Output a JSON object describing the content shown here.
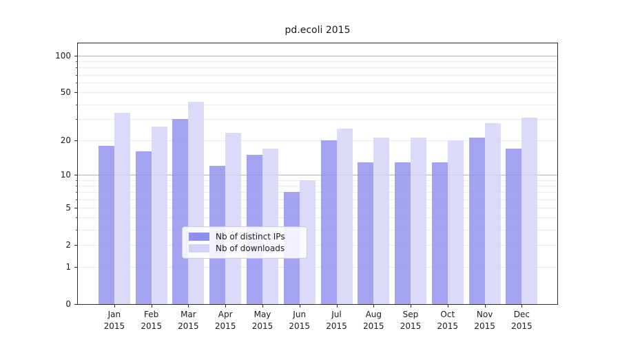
{
  "title": "pd.ecoli 2015",
  "chart_data": {
    "type": "bar",
    "title": "pd.ecoli 2015",
    "categories": [
      "Jan",
      "Feb",
      "Mar",
      "Apr",
      "May",
      "Jun",
      "Jul",
      "Aug",
      "Sep",
      "Oct",
      "Nov",
      "Dec"
    ],
    "category_year": "2015",
    "series": [
      {
        "name": "Nb of distinct IPs",
        "color": "#8f8fee",
        "values": [
          18,
          16,
          30,
          12,
          15,
          7,
          20,
          13,
          13,
          13,
          21,
          17
        ]
      },
      {
        "name": "Nb of downloads",
        "color": "#d3d3f8",
        "values": [
          34,
          26,
          42,
          23,
          17,
          9,
          25,
          21,
          21,
          20,
          28,
          31
        ]
      }
    ],
    "xlabel": "",
    "ylabel": "",
    "yscale": "log1p",
    "ylim": [
      0,
      126
    ],
    "ytick_labels": [
      0,
      1,
      2,
      5,
      10,
      20,
      50,
      100
    ],
    "ytick_major_gridlines": [
      10,
      100
    ],
    "ytick_minor_gridlines": [
      1,
      2,
      3,
      4,
      5,
      6,
      7,
      8,
      9,
      20,
      30,
      40,
      50,
      60,
      70,
      80,
      90
    ],
    "grid": true,
    "legend_position": "lower-center",
    "colors": {
      "bar_alpha": 0.82,
      "spine": "#2b2b2b",
      "grid_minor": "#ebebeb",
      "grid_major": "#b6b6b6",
      "background": "#ffffff"
    }
  }
}
